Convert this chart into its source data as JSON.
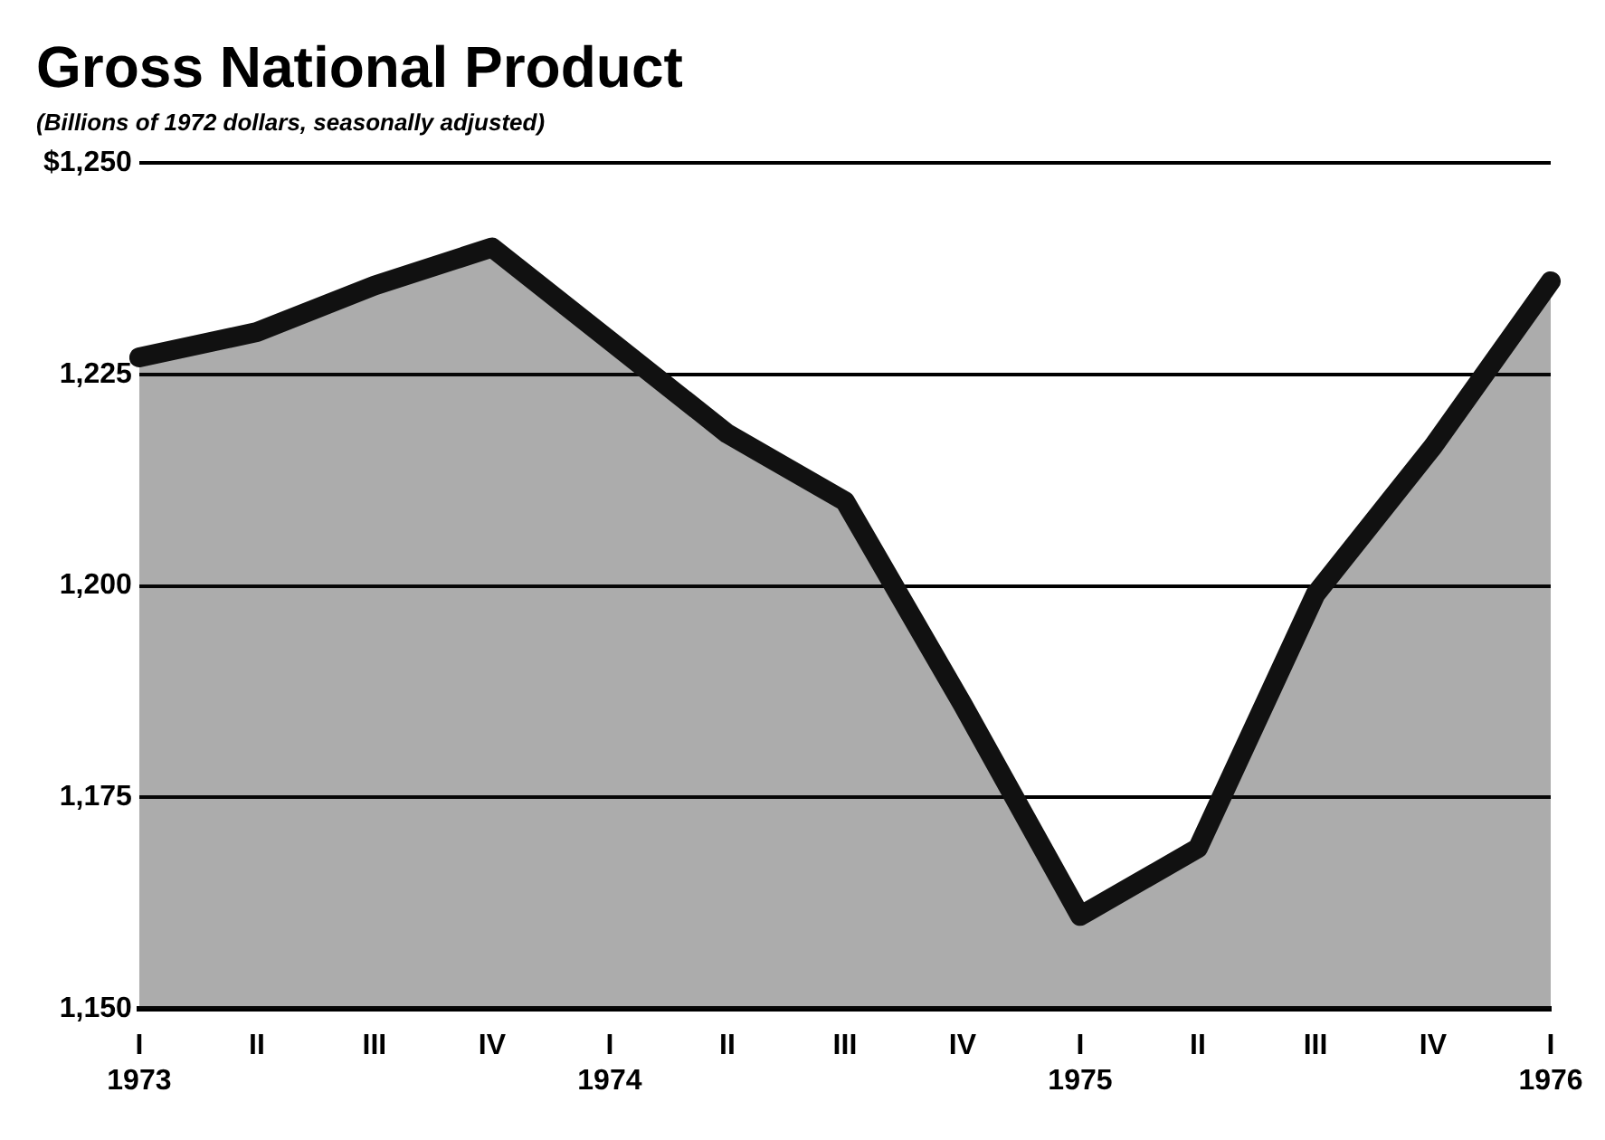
{
  "chart_data": {
    "type": "area",
    "title": "Gross National Product",
    "subtitle": "(Billions of 1972 dollars, seasonally adjusted)",
    "categories": [
      "I\n1973",
      "II",
      "III",
      "IV",
      "I\n1974",
      "II",
      "III",
      "IV",
      "I\n1975",
      "II",
      "III",
      "IV",
      "I\n1976"
    ],
    "series": [
      {
        "color": "#111111",
        "values": [
          1227,
          1230,
          1235.5,
          1240,
          1229,
          1218,
          1210,
          1186,
          1161,
          1169,
          1199,
          1216.5,
          1236
        ]
      }
    ],
    "ylim": [
      1150,
      1250
    ],
    "yticks": [
      {
        "value": 1150,
        "label": "1,150"
      },
      {
        "value": 1175,
        "label": "1,175"
      },
      {
        "value": 1200,
        "label": "1,200"
      },
      {
        "value": 1225,
        "label": "1,225"
      },
      {
        "value": 1250,
        "label": "$1,250"
      }
    ],
    "grid": "y",
    "legend": false
  }
}
